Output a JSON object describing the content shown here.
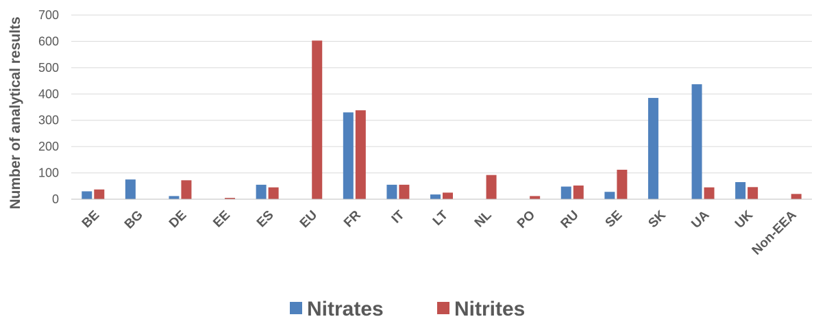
{
  "chart_data": {
    "type": "bar",
    "title": "",
    "xlabel": "",
    "ylabel": "Number of analytical results",
    "ylim": [
      0,
      700
    ],
    "yticks": [
      0,
      100,
      200,
      300,
      400,
      500,
      600,
      700
    ],
    "grid": true,
    "legend_position": "bottom",
    "categories": [
      "BE",
      "BG",
      "DE",
      "EE",
      "ES",
      "EU",
      "FR",
      "IT",
      "LT",
      "NL",
      "PO",
      "RU",
      "SE",
      "SK",
      "UA",
      "UK",
      "Non-EEA"
    ],
    "series": [
      {
        "name": "Nitrates",
        "color": "#4F81BD",
        "values": [
          30,
          75,
          12,
          0,
          55,
          0,
          330,
          55,
          18,
          0,
          0,
          48,
          28,
          385,
          437,
          65,
          0
        ]
      },
      {
        "name": "Nitrites",
        "color": "#C0504D",
        "values": [
          37,
          0,
          72,
          5,
          45,
          603,
          338,
          55,
          25,
          92,
          12,
          52,
          112,
          0,
          45,
          46,
          20
        ]
      }
    ]
  }
}
